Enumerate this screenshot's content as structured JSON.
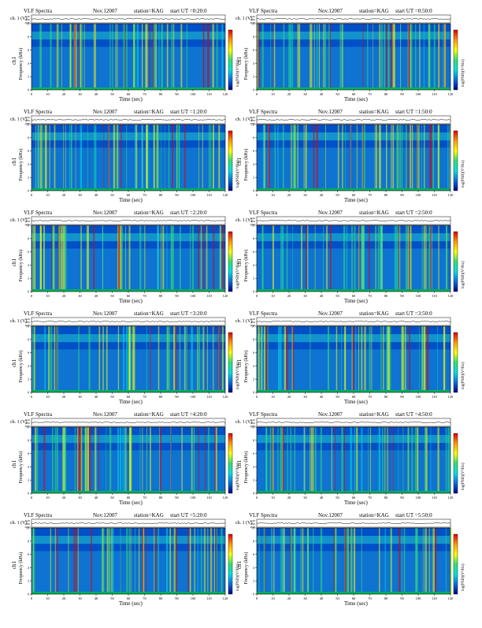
{
  "page": {
    "common": {
      "title_left": "VLF Spectra",
      "date": "Nov.12007",
      "station": "station=KAG",
      "ch_label": "ch. 1 (V)",
      "ch_ticks": [
        "0.20",
        "0.00",
        "-0.20"
      ],
      "ylabel_ch": "ch1",
      "ylabel_freq": "Frequency (kHz)",
      "yticks_freq": [
        "0",
        "2",
        "4",
        "6",
        "8",
        "10"
      ],
      "xticks": [
        "0",
        "10",
        "20",
        "30",
        "40",
        "50",
        "60",
        "70",
        "80",
        "90",
        "100",
        "110",
        "120"
      ],
      "xlabel": "Time (sec)",
      "colorbar_label": "log(PSD)(V²/Hz)",
      "colorbar_colors": [
        "#e00000",
        "#ff9900",
        "#ffff00",
        "#33e070",
        "#00e0e0",
        "#0070e0",
        "#00008b"
      ]
    },
    "panels": [
      {
        "start": "start UT =0:20:0"
      },
      {
        "start": "start UT =0:50:0"
      },
      {
        "start": "start UT =1:20:0"
      },
      {
        "start": "start UT =1:50:0"
      },
      {
        "start": "start UT =2:20:0"
      },
      {
        "start": "start UT =2:50:0"
      },
      {
        "start": "start UT =3:20:0"
      },
      {
        "start": "start UT =3:50:0"
      },
      {
        "start": "start UT =4:20:0"
      },
      {
        "start": "start UT =4:50:0"
      },
      {
        "start": "start UT =5:20:0"
      },
      {
        "start": "start UT =5:50:0"
      }
    ]
  },
  "chart_data": [
    {
      "type": "heatmap",
      "title": "VLF Spectra Nov.12007 station=KAG start UT =0:20:0",
      "xlabel": "Time (sec)",
      "ylabel": "Frequency (kHz)",
      "xlim": [
        0,
        120
      ],
      "ylim": [
        0,
        10
      ],
      "colorbar": "log(PSD)(V²/Hz)"
    },
    {
      "type": "heatmap",
      "title": "VLF Spectra Nov.12007 station=KAG start UT =0:50:0",
      "xlabel": "Time (sec)",
      "ylabel": "Frequency (kHz)",
      "xlim": [
        0,
        120
      ],
      "ylim": [
        0,
        10
      ],
      "colorbar": "log(PSD)(V²/Hz)"
    },
    {
      "type": "heatmap",
      "title": "VLF Spectra Nov.12007 station=KAG start UT =1:20:0",
      "xlabel": "Time (sec)",
      "ylabel": "Frequency (kHz)",
      "xlim": [
        0,
        120
      ],
      "ylim": [
        0,
        10
      ],
      "colorbar": "log(PSD)(V²/Hz)"
    },
    {
      "type": "heatmap",
      "title": "VLF Spectra Nov.12007 station=KAG start UT =1:50:0",
      "xlabel": "Time (sec)",
      "ylabel": "Frequency (kHz)",
      "xlim": [
        0,
        120
      ],
      "ylim": [
        0,
        10
      ],
      "colorbar": "log(PSD)(V²/Hz)"
    },
    {
      "type": "heatmap",
      "title": "VLF Spectra Nov.12007 station=KAG start UT =2:20:0",
      "xlabel": "Time (sec)",
      "ylabel": "Frequency (kHz)",
      "xlim": [
        0,
        120
      ],
      "ylim": [
        0,
        10
      ],
      "colorbar": "log(PSD)(V²/Hz)"
    },
    {
      "type": "heatmap",
      "title": "VLF Spectra Nov.12007 station=KAG start UT =2:50:0",
      "xlabel": "Time (sec)",
      "ylabel": "Frequency (kHz)",
      "xlim": [
        0,
        120
      ],
      "ylim": [
        0,
        10
      ],
      "colorbar": "log(PSD)(V²/Hz)"
    },
    {
      "type": "heatmap",
      "title": "VLF Spectra Nov.12007 station=KAG start UT =3:20:0",
      "xlabel": "Time (sec)",
      "ylabel": "Frequency (kHz)",
      "xlim": [
        0,
        120
      ],
      "ylim": [
        0,
        10
      ],
      "colorbar": "log(PSD)(V²/Hz)"
    },
    {
      "type": "heatmap",
      "title": "VLF Spectra Nov.12007 station=KAG start UT =3:50:0",
      "xlabel": "Time (sec)",
      "ylabel": "Frequency (kHz)",
      "xlim": [
        0,
        120
      ],
      "ylim": [
        0,
        10
      ],
      "colorbar": "log(PSD)(V²/Hz)"
    },
    {
      "type": "heatmap",
      "title": "VLF Spectra Nov.12007 station=KAG start UT =4:20:0",
      "xlabel": "Time (sec)",
      "ylabel": "Frequency (kHz)",
      "xlim": [
        0,
        120
      ],
      "ylim": [
        0,
        10
      ],
      "colorbar": "log(PSD)(V²/Hz)"
    },
    {
      "type": "heatmap",
      "title": "VLF Spectra Nov.12007 station=KAG start UT =4:50:0",
      "xlabel": "Time (sec)",
      "ylabel": "Frequency (kHz)",
      "xlim": [
        0,
        120
      ],
      "ylim": [
        0,
        10
      ],
      "colorbar": "log(PSD)(V²/Hz)"
    },
    {
      "type": "heatmap",
      "title": "VLF Spectra Nov.12007 station=KAG start UT =5:20:0",
      "xlabel": "Time (sec)",
      "ylabel": "Frequency (kHz)",
      "xlim": [
        0,
        120
      ],
      "ylim": [
        0,
        10
      ],
      "colorbar": "log(PSD)(V²/Hz)"
    },
    {
      "type": "heatmap",
      "title": "VLF Spectra Nov.12007 station=KAG start UT =5:50:0",
      "xlabel": "Time (sec)",
      "ylabel": "Frequency (kHz)",
      "xlim": [
        0,
        120
      ],
      "ylim": [
        0,
        10
      ],
      "colorbar": "log(PSD)(V²/Hz)"
    }
  ]
}
